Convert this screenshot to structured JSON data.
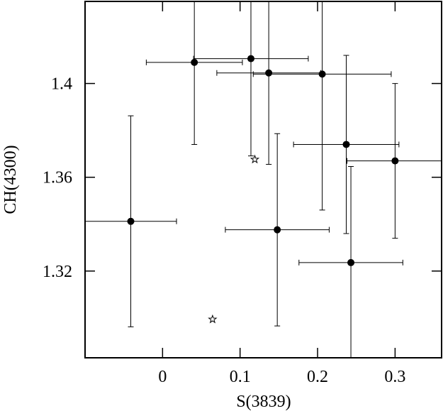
{
  "chart_data": {
    "type": "scatter",
    "x_label": "S(3839)",
    "y_label": "CH(4300)",
    "xlim": [
      -0.1,
      0.36
    ],
    "ylim": [
      1.283,
      1.435
    ],
    "xticks": [
      0,
      0.1,
      0.2,
      0.3
    ],
    "yticks": [
      1.32,
      1.36,
      1.4
    ],
    "color": "#000000",
    "points": {
      "x": [
        0.041,
        0.114,
        0.137,
        0.206,
        0.237,
        0.3,
        -0.041,
        0.148,
        0.243
      ],
      "y": [
        1.409,
        1.4106,
        1.4045,
        1.404,
        1.374,
        1.367,
        1.3412,
        1.3376,
        1.3236
      ],
      "xerr": [
        0.062,
        0.074,
        0.067,
        0.089,
        0.068,
        0.062,
        0.059,
        0.067,
        0.067
      ],
      "yerr": [
        0.035,
        0.0415,
        0.039,
        0.058,
        0.038,
        0.033,
        0.045,
        0.041,
        0.041
      ]
    },
    "stars": {
      "x": [
        0.119,
        0.0645
      ],
      "y": [
        1.3676,
        1.2994
      ]
    }
  }
}
